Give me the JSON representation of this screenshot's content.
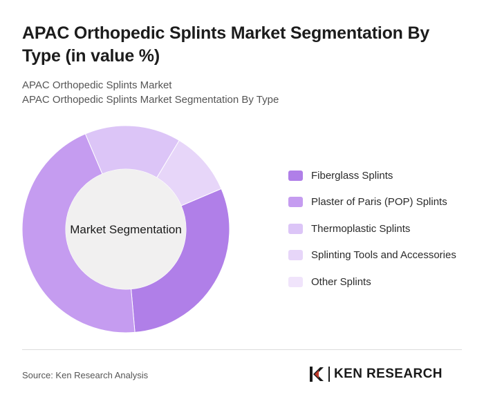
{
  "header": {
    "title": "APAC Orthopedic Splints Market Segmentation By Type (in value %)",
    "subtitle_line1": "APAC Orthopedic Splints Market",
    "subtitle_line2": "APAC Orthopedic Splints Market Segmentation By Type"
  },
  "chart_data": {
    "type": "pie",
    "variant": "donut",
    "center_label": "Market Segmentation",
    "categories": [
      "Fiberglass Splints",
      "Plaster of Paris (POP) Splints",
      "Thermoplastic Splints",
      "Splinting Tools and Accessories",
      "Other Splints"
    ],
    "values": [
      30,
      45,
      15,
      10,
      0
    ],
    "colors": [
      "#b07fe8",
      "#c59cf0",
      "#dcc5f7",
      "#e7d6f9",
      "#f0e4fb"
    ],
    "legend_position": "right"
  },
  "footer": {
    "source": "Source: Ken Research Analysis",
    "logo_text": "KEN RESEARCH"
  }
}
